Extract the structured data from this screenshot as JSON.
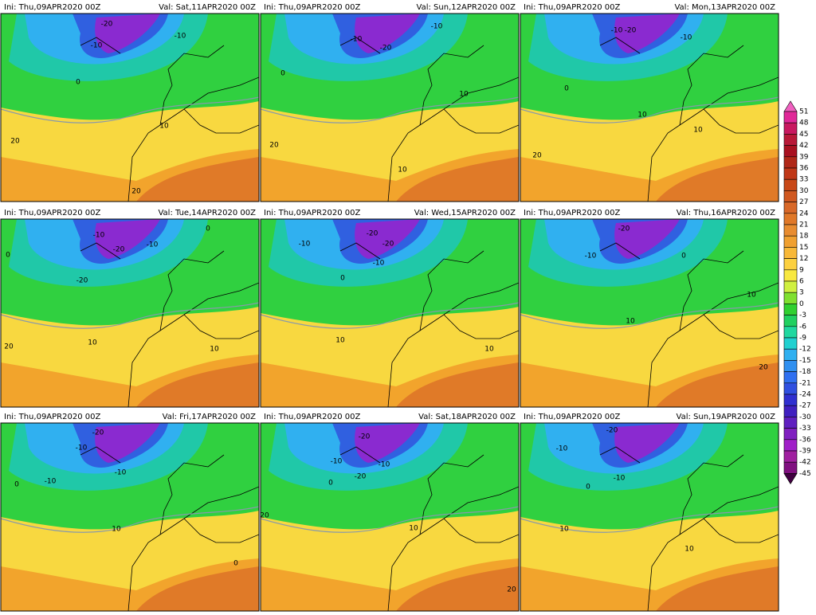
{
  "panels": [
    {
      "ini": "Ini: Thu,09APR2020 00Z",
      "val": "Val: Sat,11APR2020 00Z",
      "contour_labels": [
        -20,
        -10,
        -10,
        0,
        10,
        20,
        20
      ]
    },
    {
      "ini": "Ini: Thu,09APR2020 00Z",
      "val": "Val: Sun,12APR2020 00Z",
      "contour_labels": [
        -10,
        -10,
        -20,
        0,
        10,
        20,
        10
      ]
    },
    {
      "ini": "Ini: Thu,09APR2020 00Z",
      "val": "Val: Mon,13APR2020 00Z",
      "contour_labels": [
        -10,
        -20,
        -10,
        0,
        10,
        10,
        20
      ]
    },
    {
      "ini": "Ini: Thu,09APR2020 00Z",
      "val": "Val: Tue,14APR2020 00Z",
      "contour_labels": [
        -10,
        -20,
        -10,
        0,
        -20,
        0,
        10,
        20,
        10
      ]
    },
    {
      "ini": "Ini: Thu,09APR2020 00Z",
      "val": "Val: Wed,15APR2020 00Z",
      "contour_labels": [
        -10,
        -20,
        -20,
        -10,
        0,
        10,
        10
      ]
    },
    {
      "ini": "Ini: Thu,09APR2020 00Z",
      "val": "Val: Thu,16APR2020 00Z",
      "contour_labels": [
        -20,
        -10,
        0,
        10,
        10,
        20
      ]
    },
    {
      "ini": "Ini: Thu,09APR2020 00Z",
      "val": "Val: Fri,17APR2020 00Z",
      "contour_labels": [
        -20,
        -10,
        -10,
        0,
        -10,
        10,
        0
      ]
    },
    {
      "ini": "Ini: Thu,09APR2020 00Z",
      "val": "Val: Sat,18APR2020 00Z",
      "contour_labels": [
        -20,
        -10,
        -20,
        -10,
        0,
        10,
        20,
        20
      ]
    },
    {
      "ini": "Ini: Thu,09APR2020 00Z",
      "val": "Val: Sun,19APR2020 00Z",
      "contour_labels": [
        -20,
        -10,
        -10,
        0,
        10,
        10
      ]
    }
  ],
  "colorbar": {
    "labels": [
      51,
      48,
      45,
      42,
      39,
      36,
      33,
      30,
      27,
      24,
      21,
      18,
      15,
      12,
      9,
      6,
      3,
      0,
      -3,
      -6,
      -9,
      -12,
      -15,
      -18,
      -21,
      -24,
      -27,
      -30,
      -33,
      -36,
      -39,
      -42,
      -45
    ],
    "colors": [
      "#f060c0",
      "#e02898",
      "#c81860",
      "#b81838",
      "#a81020",
      "#b02818",
      "#c03818",
      "#c84818",
      "#d05820",
      "#d86828",
      "#e07828",
      "#e88c30",
      "#f0a030",
      "#f8b838",
      "#fcd040",
      "#f8e840",
      "#d0f040",
      "#80e030",
      "#30d030",
      "#20d060",
      "#20d8a0",
      "#20d0d0",
      "#30b0f0",
      "#3090f0",
      "#3070f0",
      "#3050e0",
      "#3030d0",
      "#4020c0",
      "#6020c0",
      "#8020c0",
      "#a020c8",
      "#a020a0",
      "#801080",
      "#400040"
    ]
  }
}
